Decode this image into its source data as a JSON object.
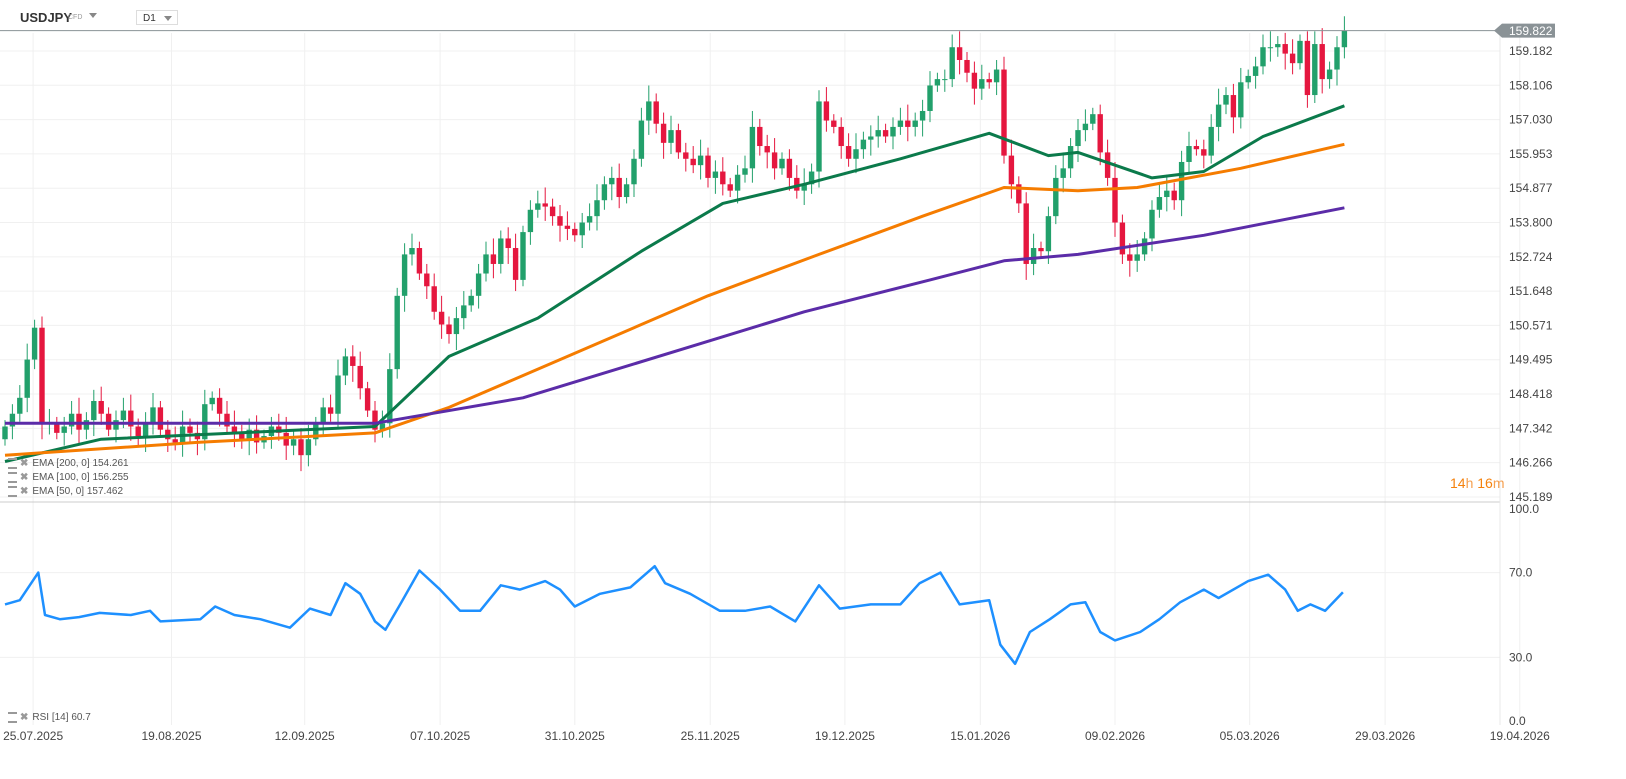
{
  "header": {
    "symbol": "USDJPY",
    "type": "CFD",
    "timeframe": "D1"
  },
  "countdown": {
    "hours": "14",
    "h": "h",
    "minutes": "16",
    "m": "m"
  },
  "colors": {
    "up": "#22a06b",
    "down": "#e5173f",
    "ema50": "#0b7a4b",
    "ema100": "#f57c00",
    "ema200": "#5b2ca8",
    "rsi": "#1e90ff",
    "price_tag": "#8a9296"
  },
  "chart_data": {
    "type": "candlestick",
    "title": "USDJPY CFD D1",
    "price_ticks": [
      "159.182",
      "158.106",
      "157.030",
      "155.953",
      "154.877",
      "153.800",
      "152.724",
      "151.648",
      "150.571",
      "149.495",
      "148.418",
      "147.342",
      "146.266",
      "145.189"
    ],
    "price_tick_values": [
      159.182,
      158.106,
      157.03,
      155.953,
      154.877,
      153.8,
      152.724,
      151.648,
      150.571,
      149.495,
      148.418,
      147.342,
      146.266,
      145.189
    ],
    "current_price": "159.822",
    "current_price_value": 159.822,
    "x_labels": [
      "25.07.2025",
      "19.08.2025",
      "12.09.2025",
      "07.10.2025",
      "31.10.2025",
      "25.11.2025",
      "19.12.2025",
      "15.01.2026",
      "09.02.2026",
      "05.03.2026",
      "29.03.2026",
      "19.04.2026"
    ],
    "x_label_candle_index": [
      3.8,
      22.5,
      40.5,
      58.8,
      77,
      95.3,
      113.5,
      131.8,
      150,
      168.2,
      186.5,
      204.7
    ],
    "first_open": 147.0,
    "closes": [
      147.4,
      147.8,
      148.3,
      149.5,
      150.5,
      147.5,
      147.5,
      147.2,
      147.4,
      147.8,
      147.3,
      147.6,
      148.2,
      147.8,
      147.3,
      147.6,
      147.9,
      147.4,
      147.1,
      147.5,
      148.0,
      147.3,
      147.0,
      146.9,
      147.4,
      147.2,
      147.0,
      148.1,
      148.3,
      147.8,
      147.4,
      147.2,
      147.0,
      147.3,
      146.9,
      147.1,
      147.4,
      147.2,
      146.8,
      147.0,
      146.5,
      147.0,
      147.5,
      148.0,
      147.8,
      149.0,
      149.6,
      149.3,
      148.6,
      147.9,
      147.3,
      147.5,
      149.2,
      151.5,
      152.8,
      153.0,
      152.2,
      151.8,
      151.0,
      150.6,
      150.3,
      150.8,
      151.2,
      151.5,
      152.2,
      152.8,
      152.5,
      153.3,
      153.0,
      152.0,
      153.5,
      154.2,
      154.4,
      154.3,
      154.0,
      153.7,
      153.6,
      153.4,
      153.8,
      154.0,
      154.5,
      155.0,
      155.2,
      154.6,
      155.0,
      155.8,
      157.0,
      157.6,
      156.9,
      156.3,
      156.7,
      156.0,
      155.8,
      155.6,
      155.9,
      155.2,
      155.4,
      155.0,
      154.8,
      155.3,
      155.5,
      156.8,
      156.2,
      156.0,
      155.5,
      155.8,
      155.2,
      154.8,
      155.0,
      155.4,
      157.6,
      157.0,
      156.8,
      156.2,
      155.8,
      156.1,
      156.4,
      156.5,
      156.7,
      156.5,
      156.8,
      157.0,
      156.8,
      157.0,
      157.3,
      158.1,
      158.3,
      158.3,
      159.3,
      158.9,
      158.5,
      158.0,
      158.3,
      158.2,
      158.6,
      155.9,
      155.0,
      154.4,
      152.5,
      153.0,
      152.9,
      154.0,
      155.2,
      155.5,
      156.2,
      156.7,
      156.9,
      157.2,
      156.0,
      155.2,
      153.8,
      152.8,
      152.6,
      152.8,
      153.3,
      154.2,
      154.6,
      154.8,
      154.5,
      155.7,
      156.2,
      156.1,
      155.9,
      156.8,
      157.5,
      157.8,
      157.1,
      158.2,
      158.4,
      158.7,
      159.3,
      159.3,
      159.4,
      159.1,
      158.8,
      159.5,
      157.8,
      159.4,
      158.3,
      158.6,
      159.3,
      159.822
    ],
    "ema": [
      {
        "name": "EMA [50, 0]",
        "value": "157.462",
        "color_key": "ema50",
        "points": [
          [
            0,
            146.3
          ],
          [
            13,
            147.0
          ],
          [
            50,
            147.4
          ],
          [
            60,
            149.6
          ],
          [
            72,
            150.8
          ],
          [
            86,
            152.9
          ],
          [
            97,
            154.4
          ],
          [
            108,
            155.0
          ],
          [
            121,
            155.8
          ],
          [
            133,
            156.6
          ],
          [
            141,
            155.9
          ],
          [
            145,
            156.0
          ],
          [
            155,
            155.2
          ],
          [
            162,
            155.4
          ],
          [
            170,
            156.5
          ],
          [
            181,
            157.462
          ]
        ]
      },
      {
        "name": "EMA [100, 0]",
        "value": "156.255",
        "color_key": "ema100",
        "points": [
          [
            0,
            146.5
          ],
          [
            26,
            146.9
          ],
          [
            50,
            147.2
          ],
          [
            60,
            148.0
          ],
          [
            75,
            149.5
          ],
          [
            95,
            151.5
          ],
          [
            110,
            152.8
          ],
          [
            124,
            154.0
          ],
          [
            135,
            154.9
          ],
          [
            145,
            154.8
          ],
          [
            153,
            154.9
          ],
          [
            167,
            155.5
          ],
          [
            181,
            156.255
          ]
        ]
      },
      {
        "name": "EMA [200, 0]",
        "value": "154.261",
        "color_key": "ema200",
        "points": [
          [
            0,
            147.5
          ],
          [
            50,
            147.5
          ],
          [
            70,
            148.3
          ],
          [
            94,
            150.0
          ],
          [
            108,
            151.0
          ],
          [
            125,
            152.0
          ],
          [
            135,
            152.6
          ],
          [
            145,
            152.8
          ],
          [
            162,
            153.4
          ],
          [
            181,
            154.261
          ]
        ]
      }
    ],
    "rsi": {
      "name": "RSI [14]",
      "value": "60.7",
      "ticks": [
        "100.0",
        "70.0",
        "30.0",
        "0.0"
      ],
      "tick_values": [
        100,
        70,
        30,
        0
      ],
      "points": [
        [
          0,
          55
        ],
        [
          2,
          57
        ],
        [
          4.5,
          70
        ],
        [
          5.4,
          50
        ],
        [
          7.4,
          48
        ],
        [
          10,
          49
        ],
        [
          12.8,
          51
        ],
        [
          17,
          50
        ],
        [
          19.6,
          52
        ],
        [
          21,
          47
        ],
        [
          26.4,
          48
        ],
        [
          28.4,
          54
        ],
        [
          31,
          50
        ],
        [
          34.5,
          48
        ],
        [
          38.5,
          44
        ],
        [
          41.2,
          53
        ],
        [
          44,
          50
        ],
        [
          46,
          65
        ],
        [
          48,
          60
        ],
        [
          50,
          47
        ],
        [
          51.4,
          43
        ],
        [
          53.4,
          55
        ],
        [
          56,
          71
        ],
        [
          58.8,
          62
        ],
        [
          61.5,
          52
        ],
        [
          64.2,
          52
        ],
        [
          67,
          64
        ],
        [
          69.6,
          62
        ],
        [
          73,
          66
        ],
        [
          75,
          62
        ],
        [
          77,
          54
        ],
        [
          80.4,
          60
        ],
        [
          84.5,
          63
        ],
        [
          87.8,
          73
        ],
        [
          89.2,
          65
        ],
        [
          92.6,
          60
        ],
        [
          96.6,
          52
        ],
        [
          100,
          52
        ],
        [
          103.4,
          54
        ],
        [
          106.8,
          47
        ],
        [
          110,
          64
        ],
        [
          112.8,
          53
        ],
        [
          117,
          55
        ],
        [
          121,
          55
        ],
        [
          123.6,
          65
        ],
        [
          126.4,
          70
        ],
        [
          129,
          55
        ],
        [
          133,
          57
        ],
        [
          134.5,
          36
        ],
        [
          136.5,
          27
        ],
        [
          138.5,
          42
        ],
        [
          141.2,
          48
        ],
        [
          144,
          55
        ],
        [
          146,
          56
        ],
        [
          148,
          42
        ],
        [
          150,
          38
        ],
        [
          153.4,
          42
        ],
        [
          156,
          48
        ],
        [
          158.8,
          56
        ],
        [
          162,
          62
        ],
        [
          164,
          58
        ],
        [
          168,
          66
        ],
        [
          170.7,
          69
        ],
        [
          173,
          62
        ],
        [
          174.7,
          52
        ],
        [
          176.4,
          55
        ],
        [
          178.4,
          52
        ],
        [
          180.8,
          60.7
        ]
      ]
    }
  }
}
